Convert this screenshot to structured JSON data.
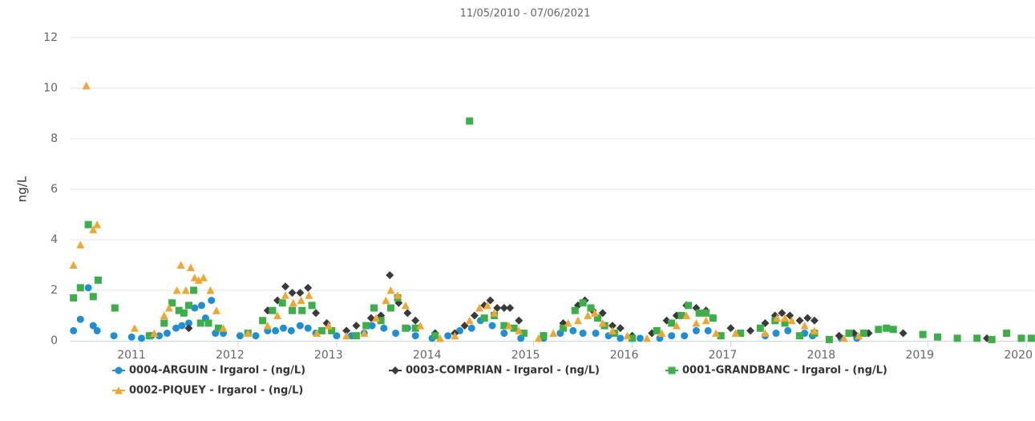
{
  "chart_data": {
    "type": "scatter",
    "subtitle": "11/05/2010 - 07/06/2021",
    "y_label": "ng/L",
    "xlim": [
      2010.3,
      2020.08
    ],
    "xticks": [
      2011,
      2012,
      2013,
      2014,
      2015,
      2016,
      2017,
      2018,
      2019,
      2020
    ],
    "ylim": [
      0,
      12
    ],
    "yticks": [
      0,
      2,
      4,
      6,
      8,
      10,
      12
    ],
    "grid": true,
    "series": [
      {
        "name": "0004-ARGUIN - Irgarol - (ng/L)",
        "color": "#1e8fd5",
        "marker": "circle",
        "x": [
          2010.33,
          2010.4,
          2010.48,
          2010.53,
          2010.57,
          2010.74,
          2010.92,
          2011.02,
          2011.12,
          2011.2,
          2011.28,
          2011.37,
          2011.43,
          2011.5,
          2011.56,
          2011.63,
          2011.67,
          2011.73,
          2011.77,
          2011.85,
          2012.02,
          2012.18,
          2012.3,
          2012.38,
          2012.46,
          2012.54,
          2012.63,
          2012.71,
          2012.79,
          2013.0,
          2013.15,
          2013.28,
          2013.36,
          2013.48,
          2013.6,
          2013.72,
          2013.8,
          2013.97,
          2014.13,
          2014.25,
          2014.37,
          2014.46,
          2014.58,
          2014.7,
          2014.87,
          2015.1,
          2015.27,
          2015.4,
          2015.5,
          2015.63,
          2015.76,
          2015.88,
          2016.08,
          2016.28,
          2016.4,
          2016.53,
          2016.65,
          2016.77,
          2016.9,
          2017.35,
          2017.46,
          2017.58,
          2017.75,
          2017.83,
          2018.12,
          2018.28
        ],
        "values": [
          0.4,
          0.85,
          2.1,
          0.6,
          0.4,
          0.2,
          0.15,
          0.1,
          0.2,
          0.2,
          0.3,
          0.5,
          0.6,
          0.7,
          1.3,
          1.4,
          0.9,
          1.6,
          0.3,
          0.3,
          0.2,
          0.2,
          0.4,
          0.4,
          0.5,
          0.4,
          0.6,
          0.5,
          0.3,
          0.2,
          0.2,
          0.3,
          0.6,
          0.5,
          0.3,
          0.5,
          0.2,
          0.1,
          0.2,
          0.4,
          0.5,
          0.8,
          0.6,
          0.3,
          0.1,
          0.1,
          0.3,
          0.4,
          0.3,
          0.3,
          0.2,
          0.1,
          0.1,
          0.1,
          0.2,
          0.2,
          0.4,
          0.4,
          0.2,
          0.2,
          0.3,
          0.4,
          0.3,
          0.2,
          0.1,
          0.1
        ]
      },
      {
        "name": "0003-COMPRIAN - Irgarol - (ng/L)",
        "color": "#3a3a3a",
        "marker": "diamond",
        "x": [
          2011.1,
          2011.5,
          2012.3,
          2012.4,
          2012.48,
          2012.55,
          2012.63,
          2012.71,
          2012.79,
          2012.9,
          2013.1,
          2013.2,
          2013.35,
          2013.45,
          2013.54,
          2013.63,
          2013.72,
          2013.8,
          2014.0,
          2014.2,
          2014.3,
          2014.4,
          2014.5,
          2014.56,
          2014.63,
          2014.7,
          2014.76,
          2014.85,
          2015.1,
          2015.3,
          2015.45,
          2015.52,
          2015.6,
          2015.7,
          2015.8,
          2015.88,
          2016.0,
          2016.2,
          2016.35,
          2016.45,
          2016.55,
          2016.65,
          2016.75,
          2016.82,
          2017.0,
          2017.2,
          2017.35,
          2017.45,
          2017.52,
          2017.6,
          2017.7,
          2017.78,
          2017.85,
          2018.1,
          2018.25,
          2018.4,
          2018.75,
          2019.6
        ],
        "values": [
          0.2,
          0.5,
          1.2,
          1.6,
          2.15,
          1.9,
          1.9,
          2.1,
          1.1,
          0.7,
          0.4,
          0.6,
          0.9,
          1.0,
          2.6,
          1.5,
          1.1,
          0.8,
          0.3,
          0.3,
          0.6,
          1.0,
          1.4,
          1.6,
          1.3,
          1.3,
          1.3,
          0.8,
          0.2,
          0.7,
          1.4,
          1.6,
          1.2,
          1.1,
          0.6,
          0.5,
          0.2,
          0.3,
          0.8,
          1.0,
          1.4,
          1.3,
          1.2,
          0.9,
          0.5,
          0.4,
          0.7,
          1.0,
          1.1,
          1.0,
          0.8,
          0.9,
          0.8,
          0.2,
          0.3,
          0.3,
          0.3,
          0.1
        ]
      },
      {
        "name": "0001-GRANDBANC - Irgarol - (ng/L)",
        "color": "#3cae4a",
        "marker": "square",
        "x": [
          2010.33,
          2010.4,
          2010.48,
          2010.53,
          2010.58,
          2010.75,
          2011.1,
          2011.25,
          2011.33,
          2011.4,
          2011.45,
          2011.5,
          2011.55,
          2011.62,
          2011.7,
          2011.8,
          2012.1,
          2012.25,
          2012.35,
          2012.45,
          2012.55,
          2012.65,
          2012.75,
          2012.85,
          2012.95,
          2013.2,
          2013.3,
          2013.38,
          2013.45,
          2013.55,
          2013.62,
          2013.7,
          2013.8,
          2014.0,
          2014.35,
          2014.5,
          2014.6,
          2014.7,
          2014.8,
          2014.9,
          2015.1,
          2015.3,
          2015.42,
          2015.5,
          2015.58,
          2015.65,
          2015.72,
          2015.82,
          2016.0,
          2016.25,
          2016.4,
          2016.5,
          2016.57,
          2016.68,
          2016.75,
          2016.82,
          2016.9,
          2017.1,
          2017.3,
          2017.45,
          2017.55,
          2017.7,
          2017.85,
          2018.0,
          2018.2,
          2018.35,
          2018.5,
          2018.58,
          2018.65,
          2018.95,
          2019.1,
          2019.3,
          2019.5,
          2019.65,
          2019.8,
          2019.95,
          2020.05
        ],
        "values": [
          1.7,
          2.1,
          4.6,
          1.75,
          2.4,
          1.3,
          0.2,
          0.7,
          1.5,
          1.2,
          1.1,
          1.4,
          2.0,
          0.7,
          0.7,
          0.5,
          0.3,
          0.8,
          1.2,
          1.5,
          1.2,
          1.2,
          1.4,
          0.4,
          0.4,
          0.2,
          0.6,
          1.3,
          0.8,
          1.3,
          1.7,
          0.5,
          0.5,
          0.2,
          8.7,
          0.9,
          1.0,
          0.6,
          0.5,
          0.3,
          0.2,
          0.5,
          1.2,
          1.5,
          1.3,
          0.9,
          0.6,
          0.3,
          0.1,
          0.4,
          0.7,
          1.0,
          1.4,
          1.1,
          1.1,
          0.9,
          0.2,
          0.3,
          0.5,
          0.8,
          0.7,
          0.2,
          0.3,
          0.05,
          0.3,
          0.3,
          0.45,
          0.5,
          0.45,
          0.25,
          0.15,
          0.1,
          0.1,
          0.05,
          0.3,
          0.1,
          0.1
        ]
      },
      {
        "name": "0002-PIQUEY - Irgarol - (ng/L)",
        "color": "#f0a732",
        "marker": "triangle",
        "x": [
          2010.33,
          2010.4,
          2010.46,
          2010.53,
          2010.57,
          2010.95,
          2011.15,
          2011.25,
          2011.3,
          2011.38,
          2011.42,
          2011.47,
          2011.52,
          2011.56,
          2011.6,
          2011.65,
          2011.72,
          2011.78,
          2011.85,
          2012.1,
          2012.3,
          2012.4,
          2012.48,
          2012.56,
          2012.64,
          2012.72,
          2012.8,
          2012.92,
          2013.1,
          2013.28,
          2013.4,
          2013.5,
          2013.55,
          2013.62,
          2013.7,
          2013.85,
          2014.05,
          2014.2,
          2014.35,
          2014.45,
          2014.53,
          2014.6,
          2014.75,
          2014.85,
          2015.05,
          2015.2,
          2015.35,
          2015.45,
          2015.55,
          2015.62,
          2015.7,
          2015.8,
          2015.95,
          2016.15,
          2016.3,
          2016.45,
          2016.55,
          2016.65,
          2016.75,
          2016.85,
          2017.05,
          2017.35,
          2017.47,
          2017.55,
          2017.62,
          2017.75,
          2017.85,
          2018.15,
          2018.3
        ],
        "values": [
          3.0,
          3.8,
          10.1,
          4.4,
          4.6,
          0.5,
          0.3,
          1.0,
          1.3,
          2.0,
          3.0,
          2.0,
          2.9,
          2.5,
          2.4,
          2.5,
          2.0,
          1.2,
          0.5,
          0.3,
          0.6,
          1.0,
          1.8,
          1.5,
          1.6,
          1.8,
          0.3,
          0.6,
          0.2,
          0.3,
          0.9,
          1.6,
          2.0,
          1.8,
          1.4,
          0.6,
          0.1,
          0.2,
          0.8,
          1.3,
          1.4,
          1.1,
          0.6,
          0.4,
          0.1,
          0.3,
          0.7,
          0.8,
          1.0,
          1.1,
          0.7,
          0.4,
          0.2,
          0.1,
          0.3,
          0.6,
          1.0,
          0.7,
          0.8,
          0.3,
          0.3,
          0.3,
          0.9,
          0.9,
          0.8,
          0.6,
          0.4,
          0.1,
          0.2
        ]
      }
    ]
  }
}
